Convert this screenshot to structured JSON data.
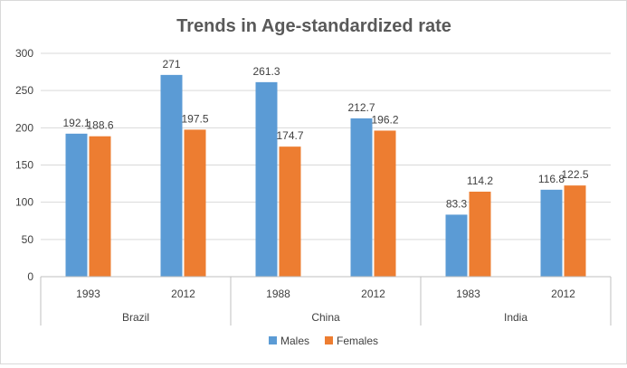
{
  "chart_data": {
    "type": "bar",
    "title": "Trends in Age-standardized rate",
    "xlabel": "",
    "ylabel": "",
    "ylim": [
      0,
      300
    ],
    "yticks": [
      0,
      50,
      100,
      150,
      200,
      250,
      300
    ],
    "groups": [
      {
        "country": "Brazil",
        "years": [
          "1993",
          "2012"
        ]
      },
      {
        "country": "China",
        "years": [
          "1988",
          "2012"
        ]
      },
      {
        "country": "India",
        "years": [
          "1983",
          "2012"
        ]
      }
    ],
    "categories": [
      "1993",
      "2012",
      "1988",
      "2012",
      "1983",
      "2012"
    ],
    "series": [
      {
        "name": "Males",
        "color": "#5b9bd5",
        "values": [
          192.1,
          271,
          261.3,
          212.7,
          83.3,
          116.8
        ],
        "labels": [
          "192.1",
          "271",
          "261.3",
          "212.7",
          "83.3",
          "116.8"
        ]
      },
      {
        "name": "Females",
        "color": "#ed7d31",
        "values": [
          188.6,
          197.5,
          174.7,
          196.2,
          114.2,
          122.5
        ],
        "labels": [
          "188.6",
          "197.5",
          "174.7",
          "196.2",
          "114.2",
          "122.5"
        ]
      }
    ],
    "grid": true,
    "legend": "bottom"
  }
}
